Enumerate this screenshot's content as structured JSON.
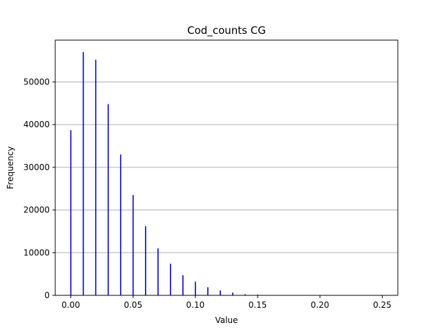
{
  "chart_data": {
    "type": "bar",
    "title": "Cod_counts CG",
    "xlabel": "Value",
    "ylabel": "Frequency",
    "xlim": [
      -0.0125,
      0.2625
    ],
    "ylim": [
      0,
      59800
    ],
    "xticks": [
      0.0,
      0.05,
      0.1,
      0.15,
      0.2,
      0.25
    ],
    "xtick_labels": [
      "0.00",
      "0.05",
      "0.10",
      "0.15",
      "0.20",
      "0.25"
    ],
    "yticks": [
      0,
      10000,
      20000,
      30000,
      40000,
      50000
    ],
    "ytick_labels": [
      "0",
      "10000",
      "20000",
      "30000",
      "40000",
      "50000"
    ],
    "grid": {
      "axis": "y",
      "on": true
    },
    "bar_color": "#0000cc",
    "grid_color": "#b0b0b0",
    "x": [
      0.0,
      0.01,
      0.02,
      0.03,
      0.04,
      0.05,
      0.06,
      0.07,
      0.08,
      0.09,
      0.1,
      0.11,
      0.12,
      0.13,
      0.14,
      0.15,
      0.16
    ],
    "values": [
      38700,
      57000,
      55200,
      44800,
      33000,
      23500,
      16200,
      11000,
      7400,
      4700,
      3200,
      1900,
      1150,
      650,
      250,
      150,
      80
    ]
  }
}
